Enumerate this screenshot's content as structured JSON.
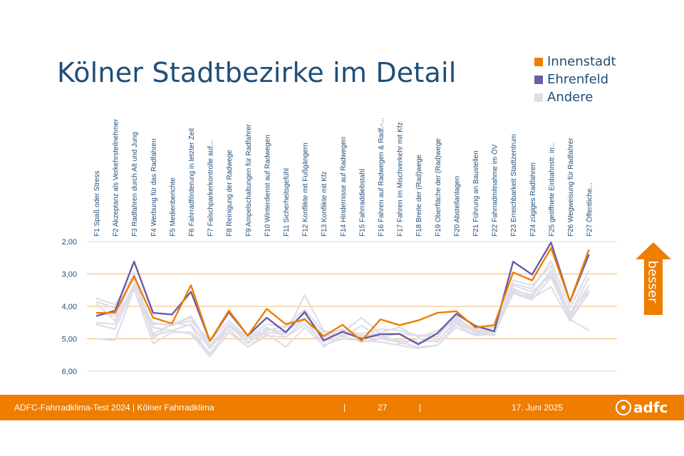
{
  "slide": {
    "title": "Kölner Stadtbezirke im Detail",
    "arrow_label": "besser"
  },
  "legend": [
    {
      "label": "Innenstadt",
      "color": "#ee7d00"
    },
    {
      "label": "Ehrenfeld",
      "color": "#6b5ba8"
    },
    {
      "label": "Andere",
      "color": "#dedee8"
    }
  ],
  "footer": {
    "left": "ADFC-Fahrradklima-Test 2024 | Kölner Fahrradklima",
    "sep1": "|",
    "page": "27",
    "sep2": "|",
    "date": "17. Juni 2025",
    "logo": "adfc"
  },
  "chart_data": {
    "type": "line",
    "y_inverted": true,
    "ylim": [
      2,
      6
    ],
    "y_ticks": [
      "2,00",
      "3,00",
      "4,00",
      "5,00",
      "6,00"
    ],
    "categories": [
      "F1 Spaß oder Stress",
      "F2 Akzeptanz als Verkehrsteilnehmer",
      "F3 Radfahren durch Alt und Jung",
      "F4 Werbung für das Radfahren",
      "F5 Medienberichte",
      "F6 Fahrradförderung in letzter Zeit",
      "F7 Falschparkerkontrolle auf...",
      "F8 Reinigung der Radwege",
      "F9 Ampelschaltungen für Radfahrer",
      "F10 Winterdienst auf Radwegen",
      "F11 Sicherheitsgefühl",
      "F12 Konflikte mit Fußgängern",
      "F13 Konflikte mit Kfz",
      "F14 Hindernisse auf Radwegen",
      "F15 Fahrraddiebstahl",
      "F16 Fahren auf Radwegen & Radf.-...",
      "F17 Fahren im Mischverkehr mit Kfz",
      "F18 Breite der (Rad)wege",
      "F19 Oberfläche der (Rad)wege",
      "F20 Abstellanlagen",
      "F21 Führung an Baustellen",
      "F22 Fahrradmitnahme im ÖV",
      "F23 Erreichbarkeit Stadtzentrum",
      "F24 zügiges Radfahren",
      "F25 geöffnete Einbahnstr. in...",
      "F26 Wegweisung für Radfahrer",
      "F27 Öffentliche..."
    ],
    "series": [
      {
        "name": "Innenstadt",
        "color": "#ee7d00",
        "values": [
          4.2,
          4.2,
          3.07,
          4.35,
          4.53,
          3.35,
          5.07,
          4.13,
          4.9,
          4.08,
          4.55,
          4.4,
          4.92,
          4.57,
          5.06,
          4.4,
          4.58,
          4.43,
          4.2,
          4.15,
          4.65,
          4.58,
          2.95,
          3.2,
          2.2,
          3.85,
          2.25
        ]
      },
      {
        "name": "Ehrenfeld",
        "color": "#6b5ba8",
        "values": [
          4.3,
          4.13,
          2.62,
          4.2,
          4.25,
          3.55,
          5.07,
          4.18,
          4.9,
          4.35,
          4.8,
          4.17,
          5.05,
          4.78,
          5.0,
          4.86,
          4.85,
          5.17,
          4.83,
          4.23,
          4.6,
          4.77,
          2.62,
          3.02,
          2.03,
          3.85,
          2.4
        ]
      },
      {
        "name": "Andere",
        "color": "#dedee8",
        "values": [
          4.2,
          4.3,
          3.5,
          4.5,
          4.6,
          4.3,
          5.2,
          4.55,
          5.0,
          4.75,
          4.6,
          4.1,
          4.8,
          4.75,
          4.85,
          4.7,
          4.75,
          4.9,
          4.85,
          4.35,
          4.75,
          4.75,
          3.3,
          3.45,
          2.6,
          4.05,
          2.9
        ]
      },
      {
        "name": "Andere",
        "color": "#dedee8",
        "values": [
          3.75,
          3.95,
          3.0,
          4.85,
          4.55,
          4.45,
          5.05,
          4.45,
          4.95,
          4.55,
          4.65,
          4.25,
          4.9,
          4.7,
          4.95,
          4.8,
          4.65,
          4.95,
          4.75,
          4.45,
          4.7,
          4.65,
          3.2,
          3.35,
          2.75,
          4.3,
          3.35
        ]
      },
      {
        "name": "Andere",
        "color": "#dedee8",
        "values": [
          3.85,
          4.05,
          3.15,
          4.65,
          4.75,
          4.55,
          5.3,
          4.6,
          5.1,
          4.8,
          4.85,
          3.65,
          4.75,
          4.95,
          4.6,
          4.95,
          4.85,
          4.9,
          4.95,
          4.3,
          4.85,
          4.8,
          3.5,
          3.65,
          2.9,
          4.35,
          3.6
        ]
      },
      {
        "name": "Andere",
        "color": "#dedee8",
        "values": [
          4.5,
          4.55,
          3.3,
          4.55,
          4.55,
          4.35,
          5.25,
          4.6,
          5.0,
          4.65,
          4.95,
          4.4,
          4.95,
          4.8,
          4.35,
          4.85,
          5.15,
          5.0,
          5.1,
          4.4,
          4.8,
          4.9,
          3.35,
          3.55,
          3.05,
          4.25,
          3.1
        ]
      },
      {
        "name": "Andere",
        "color": "#dedee8",
        "values": [
          5.0,
          5.05,
          3.45,
          5.15,
          4.8,
          4.8,
          5.45,
          4.7,
          5.25,
          4.85,
          5.25,
          4.65,
          5.2,
          5.0,
          5.05,
          5.1,
          5.2,
          5.3,
          5.2,
          4.65,
          4.9,
          4.85,
          3.55,
          3.75,
          3.4,
          4.45,
          3.55
        ]
      },
      {
        "name": "Andere",
        "color": "#dedee8",
        "values": [
          3.9,
          4.45,
          2.95,
          5.0,
          4.5,
          4.6,
          5.55,
          4.55,
          5.15,
          4.7,
          4.8,
          4.35,
          5.25,
          4.85,
          4.9,
          4.95,
          5.05,
          5.1,
          5.05,
          4.5,
          4.8,
          4.75,
          3.45,
          3.7,
          2.95,
          4.2,
          3.5
        ]
      },
      {
        "name": "Andere",
        "color": "#dedee8",
        "values": [
          4.55,
          4.7,
          3.4,
          4.9,
          4.75,
          4.85,
          5.55,
          4.8,
          5.25,
          4.9,
          4.95,
          4.55,
          5.1,
          4.9,
          5.1,
          5.0,
          5.1,
          5.25,
          5.2,
          4.55,
          4.9,
          4.85,
          3.6,
          3.8,
          3.1,
          4.4,
          4.75
        ]
      }
    ]
  }
}
